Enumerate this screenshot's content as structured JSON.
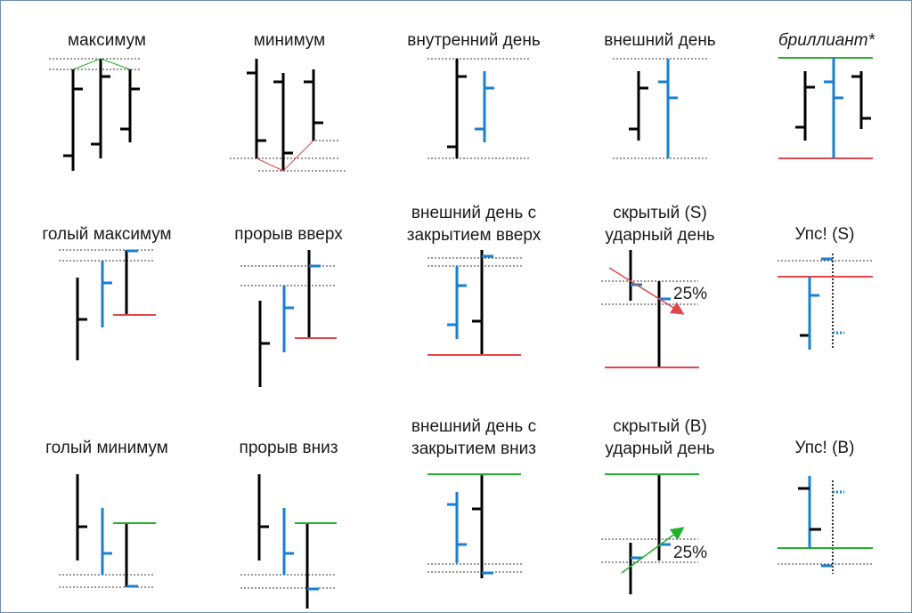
{
  "colors": {
    "bar": "#000000",
    "highlight": "#1a7fd0",
    "support": "#23b02a",
    "resistance": "#e0474c",
    "guide": "#333333"
  },
  "rows": [
    {
      "cells": [
        {
          "id": "maximum",
          "title_lines": [
            "максимум"
          ],
          "italic": false
        },
        {
          "id": "minimum",
          "title_lines": [
            "минимум"
          ],
          "italic": false
        },
        {
          "id": "inside-day",
          "title_lines": [
            "внутренний день"
          ],
          "italic": false
        },
        {
          "id": "outside-day",
          "title_lines": [
            "внешний день"
          ],
          "italic": false
        },
        {
          "id": "diamond",
          "title_lines": [
            "бриллиант*"
          ],
          "italic": true
        }
      ]
    },
    {
      "cells": [
        {
          "id": "naked-maximum",
          "title_lines": [
            "голый максимум"
          ],
          "italic": false
        },
        {
          "id": "breakout-up",
          "title_lines": [
            "прорыв вверх"
          ],
          "italic": false
        },
        {
          "id": "outside-day-close-up",
          "title_lines": [
            "внешний день с",
            "закрытием вверх"
          ],
          "italic": false
        },
        {
          "id": "hidden-strike-day-s",
          "title_lines": [
            "скрытый (S)",
            "ударный день"
          ],
          "italic": false,
          "annotation": "25%"
        },
        {
          "id": "oops-s",
          "title_lines": [
            "Упс! (S)"
          ],
          "italic": false
        }
      ]
    },
    {
      "cells": [
        {
          "id": "naked-minimum",
          "title_lines": [
            "голый минимум"
          ],
          "italic": false
        },
        {
          "id": "breakout-down",
          "title_lines": [
            "прорыв вниз"
          ],
          "italic": false
        },
        {
          "id": "outside-day-close-down",
          "title_lines": [
            "внешний день с",
            "закрытием вниз"
          ],
          "italic": false
        },
        {
          "id": "hidden-strike-day-b",
          "title_lines": [
            "скрытый (B)",
            "ударный день"
          ],
          "italic": false,
          "annotation": "25%"
        },
        {
          "id": "oops-b",
          "title_lines": [
            "Упс! (B)"
          ],
          "italic": false
        }
      ]
    }
  ]
}
